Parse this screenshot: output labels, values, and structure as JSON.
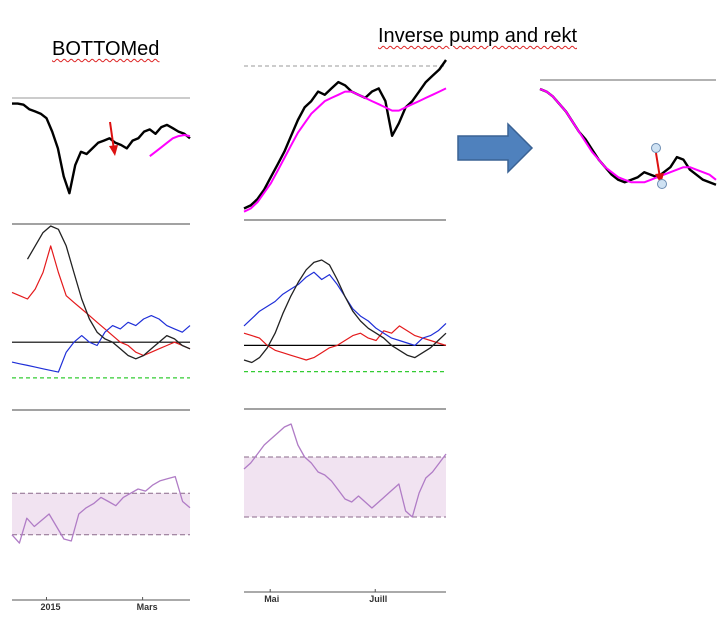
{
  "titles": {
    "left": "BOTTOMed",
    "middle": "Inverse pump and rekt"
  },
  "colors": {
    "price": "#000000",
    "moving_average": "#ff00ff",
    "indicator_red": "#e41a1c",
    "indicator_blue": "#1f2fd8",
    "indicator_black": "#222222",
    "indicator_zero": "#000000",
    "indicator_dashed": "#33cc33",
    "rsi_line": "#b07cc6",
    "rsi_band_fill": "#f1e3f1",
    "rsi_band_edge": "#8a6a8a",
    "arrow_red": "#dd1111",
    "big_arrow_fill": "#4f81bd",
    "big_arrow_edge": "#3a6294",
    "marker_circle": "#cfe2f3"
  },
  "chart_data": [
    {
      "type": "line",
      "panel": "left",
      "x_ticks": [
        "2015",
        "Mars"
      ],
      "price": [
        95,
        95,
        94,
        90,
        88,
        86,
        82,
        70,
        55,
        30,
        15,
        40,
        52,
        50,
        55,
        60,
        62,
        64,
        60,
        58,
        55,
        62,
        64,
        70,
        72,
        68,
        74,
        76,
        73,
        70,
        68,
        64
      ],
      "moving_average": [
        null,
        null,
        null,
        null,
        null,
        null,
        null,
        null,
        null,
        null,
        null,
        null,
        null,
        null,
        null,
        null,
        null,
        null,
        null,
        null,
        null,
        null,
        null,
        null,
        48,
        52,
        56,
        60,
        64,
        66,
        67,
        66
      ],
      "indicator_red": [
        60,
        58,
        56,
        62,
        72,
        88,
        72,
        58,
        54,
        50,
        46,
        42,
        38,
        34,
        30,
        28,
        24,
        22,
        24,
        26,
        28,
        30,
        28,
        26
      ],
      "indicator_blue": [
        18,
        17,
        16,
        15,
        14,
        13,
        12,
        24,
        30,
        34,
        30,
        28,
        36,
        40,
        38,
        42,
        40,
        44,
        46,
        44,
        40,
        38,
        36,
        40
      ],
      "indicator_black": [
        null,
        null,
        80,
        88,
        96,
        100,
        98,
        88,
        72,
        56,
        44,
        36,
        32,
        30,
        26,
        22,
        20,
        22,
        26,
        30,
        34,
        32,
        28,
        26
      ],
      "rsi": [
        30,
        22,
        46,
        38,
        44,
        50,
        38,
        26,
        24,
        50,
        56,
        60,
        66,
        62,
        58,
        66,
        70,
        74,
        72,
        78,
        82,
        84,
        86,
        62,
        56
      ],
      "rsi_band": [
        30,
        70
      ]
    },
    {
      "type": "line",
      "panel": "middle",
      "x_ticks": [
        "Mai",
        "Juill"
      ],
      "price": [
        6,
        8,
        12,
        18,
        26,
        34,
        42,
        52,
        62,
        70,
        74,
        80,
        78,
        82,
        86,
        84,
        80,
        78,
        76,
        80,
        82,
        74,
        52,
        60,
        70,
        74,
        80,
        86,
        90,
        94,
        100
      ],
      "moving_average": [
        4,
        6,
        10,
        16,
        22,
        30,
        38,
        46,
        54,
        60,
        66,
        70,
        74,
        76,
        78,
        80,
        80,
        78,
        76,
        74,
        72,
        70,
        68,
        68,
        70,
        72,
        74,
        76,
        78,
        80,
        82
      ],
      "indicator_red": [
        40,
        38,
        36,
        30,
        26,
        24,
        22,
        20,
        18,
        20,
        24,
        28,
        30,
        34,
        38,
        40,
        36,
        34,
        42,
        40,
        46,
        42,
        38,
        36,
        34,
        32,
        30
      ],
      "indicator_blue": [
        46,
        52,
        58,
        62,
        66,
        72,
        76,
        80,
        86,
        90,
        84,
        88,
        80,
        70,
        60,
        54,
        50,
        44,
        40,
        36,
        34,
        32,
        30,
        36,
        38,
        42,
        48
      ],
      "indicator_black": [
        18,
        16,
        20,
        28,
        40,
        56,
        70,
        82,
        92,
        98,
        100,
        96,
        84,
        70,
        58,
        50,
        44,
        40,
        36,
        30,
        26,
        22,
        20,
        24,
        28,
        34,
        40
      ],
      "rsi": [
        62,
        66,
        72,
        78,
        82,
        86,
        90,
        92,
        78,
        70,
        66,
        60,
        58,
        54,
        48,
        42,
        40,
        44,
        40,
        36,
        40,
        44,
        48,
        52,
        34,
        30,
        46,
        56,
        60,
        66,
        72
      ],
      "rsi_band": [
        30,
        70
      ]
    },
    {
      "type": "line",
      "panel": "right",
      "price": [
        96,
        94,
        90,
        84,
        78,
        70,
        62,
        56,
        48,
        40,
        34,
        28,
        24,
        22,
        24,
        26,
        30,
        28,
        26,
        30,
        34,
        42,
        40,
        32,
        28,
        24,
        22,
        20
      ],
      "moving_average": [
        96,
        94,
        90,
        84,
        78,
        70,
        62,
        54,
        46,
        40,
        34,
        30,
        26,
        24,
        22,
        22,
        22,
        24,
        26,
        28,
        30,
        32,
        34,
        34,
        32,
        30,
        28,
        24
      ]
    }
  ]
}
